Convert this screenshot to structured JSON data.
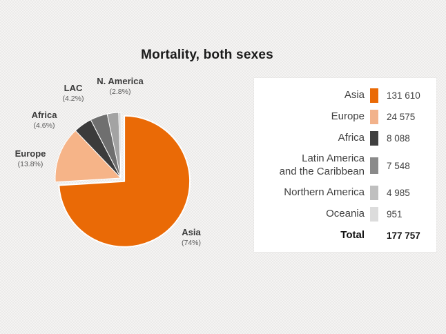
{
  "title": "Mortality, both sexes",
  "chart_data": {
    "type": "pie",
    "title": "Mortality, both sexes",
    "direction": "clockwise",
    "start_angle_deg": 0,
    "exploded_slice": "Asia",
    "legend_position": "right",
    "slices": [
      {
        "label": "Asia",
        "pie_label": "Asia",
        "value": 131610,
        "value_display": "131 610",
        "percent_display": "(74%)",
        "color": "#ea6a06",
        "legend_color": "#ea6a06"
      },
      {
        "label": "Europe",
        "pie_label": "Europe",
        "value": 24575,
        "value_display": "24 575",
        "percent_display": "(13.8%)",
        "color": "#f6b488",
        "legend_color": "#f2b28b"
      },
      {
        "label": "Africa",
        "pie_label": "Africa",
        "value": 8088,
        "value_display": "8 088",
        "percent_display": "(4.6%)",
        "color": "#3b3b3b",
        "legend_color": "#404040"
      },
      {
        "label": "Latin America\nand the Caribbean",
        "pie_label": "LAC",
        "value": 7548,
        "value_display": "7 548",
        "percent_display": "(4.2%)",
        "color": "#6f6f6f",
        "legend_color": "#8a8a8a"
      },
      {
        "label": "Northern America",
        "pie_label": "N. America",
        "value": 4985,
        "value_display": "4 985",
        "percent_display": "(2.8%)",
        "color": "#a3a3a3",
        "legend_color": "#bfbfbf"
      },
      {
        "label": "Oceania",
        "pie_label": "",
        "value": 951,
        "value_display": "951",
        "percent_display": "",
        "color": "#d2d2d2",
        "legend_color": "#dcdcdc"
      }
    ],
    "total": {
      "label": "Total",
      "value": 177757,
      "value_display": "177 757"
    }
  }
}
